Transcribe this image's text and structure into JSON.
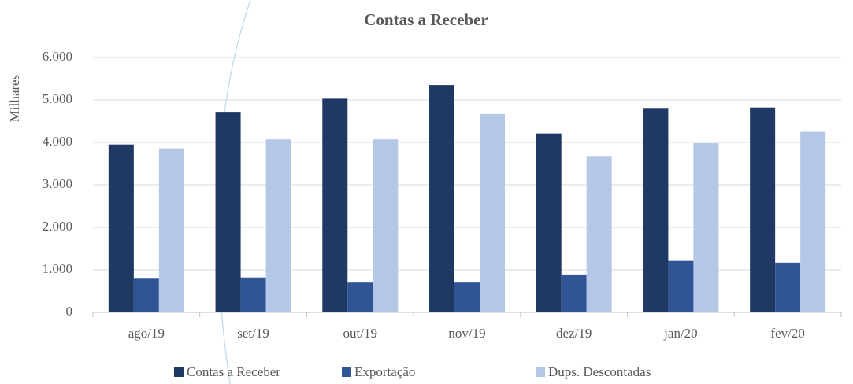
{
  "chart_data": {
    "type": "bar",
    "title": "Contas a Receber",
    "y_label": "Milhares",
    "categories": [
      "ago/19",
      "set/19",
      "out/19",
      "nov/19",
      "dez/19",
      "jan/20",
      "fev/20"
    ],
    "series": [
      {
        "name": "Contas a Receber",
        "color": "#1f3864",
        "values": [
          3950,
          4720,
          5030,
          5350,
          4210,
          4810,
          4820
        ]
      },
      {
        "name": "Exportação",
        "color": "#2f5597",
        "values": [
          810,
          820,
          700,
          700,
          890,
          1210,
          1170
        ]
      },
      {
        "name": "Dups. Descontadas",
        "color": "#b4c7e7",
        "values": [
          3860,
          4070,
          4070,
          4670,
          3680,
          3980,
          4250
        ]
      }
    ],
    "ylim": [
      0,
      6000
    ],
    "yticks": [
      0,
      {
        "value": 1000,
        "label": "1.000"
      },
      {
        "value": 2000,
        "label": "2.000"
      },
      {
        "value": 3000,
        "label": "3.000"
      },
      {
        "value": 4000,
        "label": "4.000"
      },
      {
        "value": 5000,
        "label": "5.000"
      },
      {
        "value": 6000,
        "label": "6.000"
      }
    ],
    "grid": true,
    "legend": "bottom"
  }
}
